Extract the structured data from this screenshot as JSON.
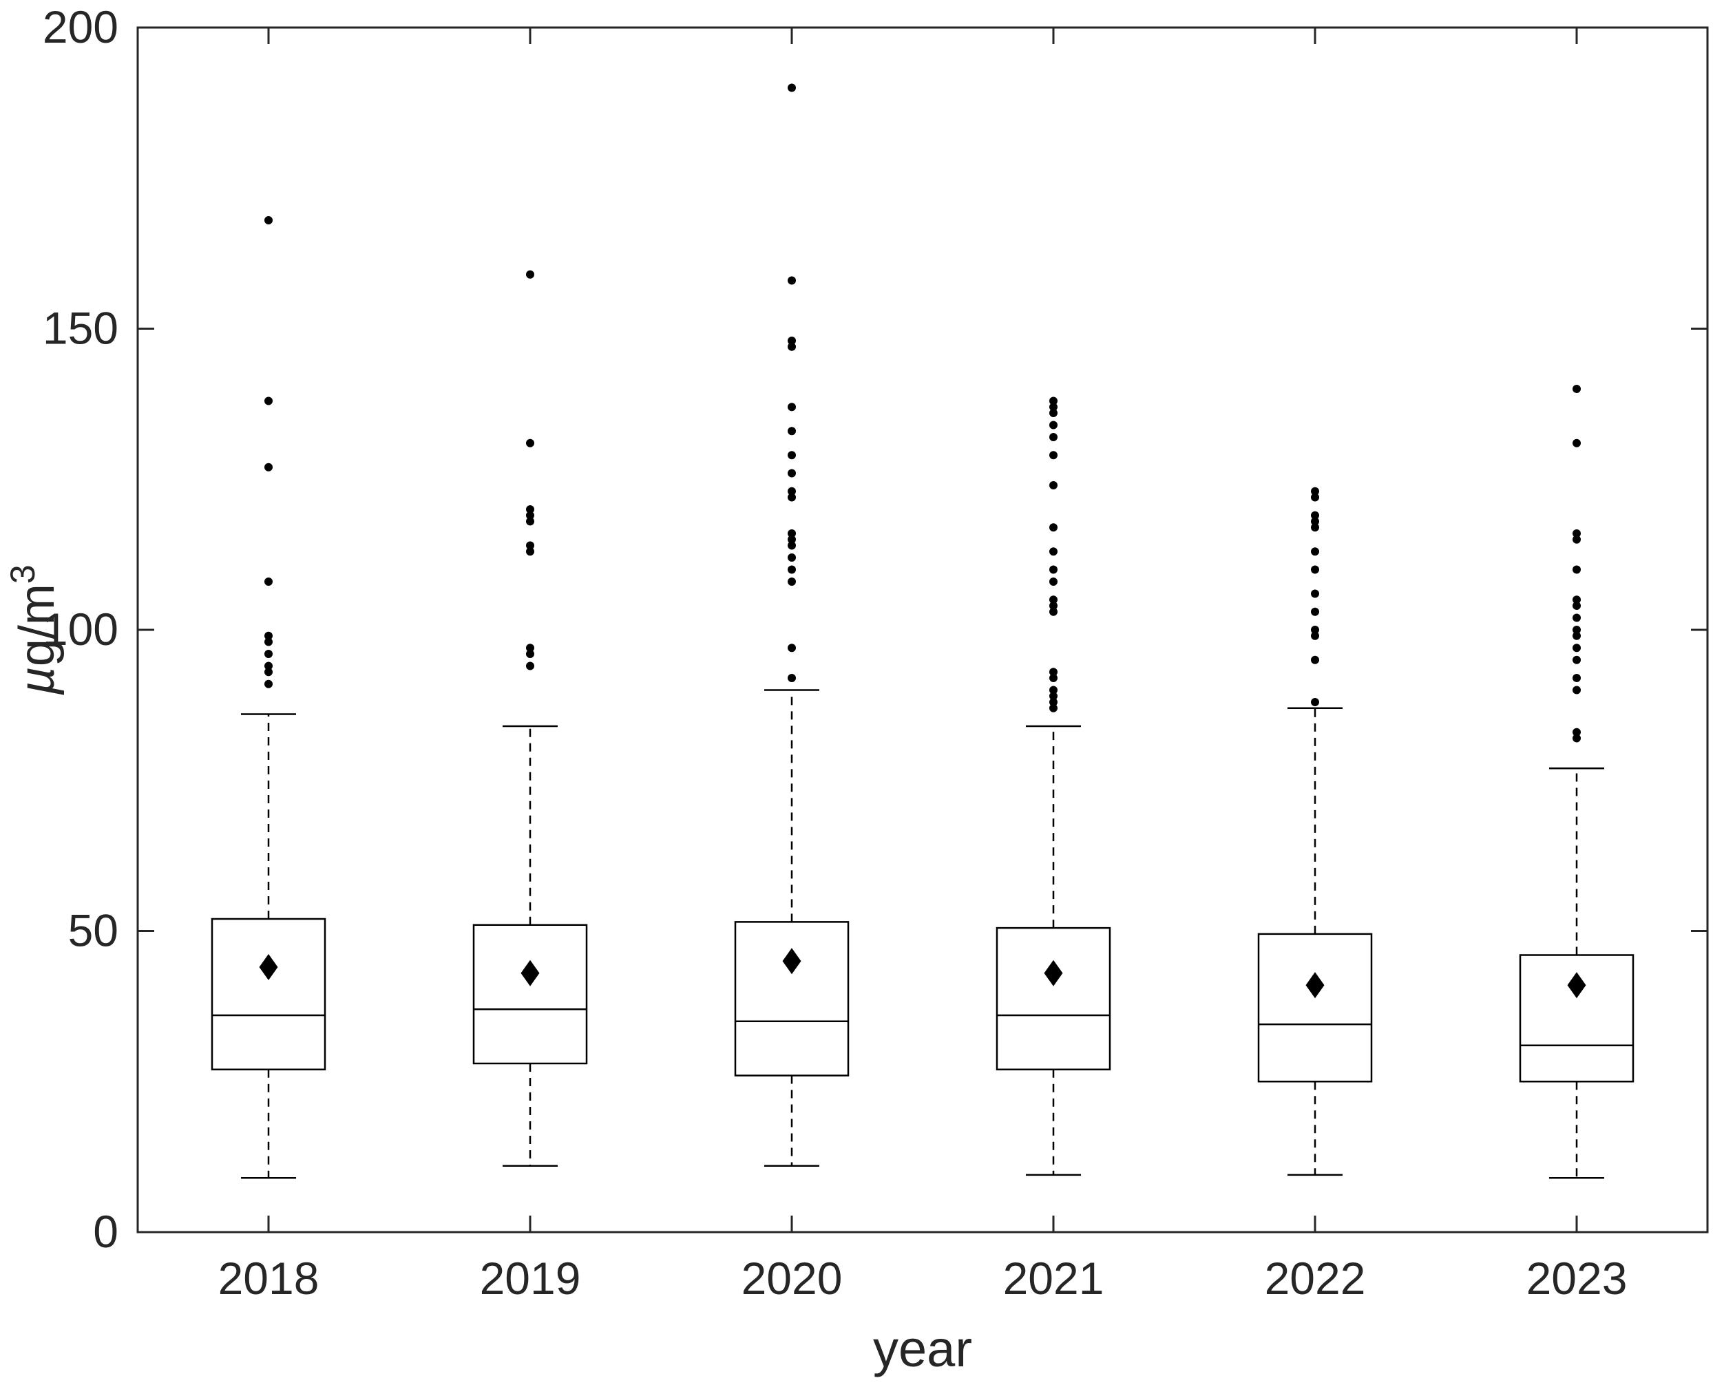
{
  "chart_data": {
    "type": "boxplot",
    "title": "",
    "xlabel": "year",
    "ylabel": "µg/m³",
    "ylabel_parts": {
      "mu": "µ",
      "base": "g/m",
      "sup": "3"
    },
    "ylim": [
      0,
      200
    ],
    "yticks": [
      0,
      50,
      100,
      150,
      200
    ],
    "grid": false,
    "legend": "none",
    "categories": [
      "2018",
      "2019",
      "2020",
      "2021",
      "2022",
      "2023"
    ],
    "series": [
      {
        "category": "2018",
        "q1": 27,
        "median": 36,
        "q3": 52,
        "whisker_low": 9,
        "whisker_high": 86,
        "mean": 44,
        "outliers": [
          91,
          93,
          94,
          96,
          98,
          99,
          108,
          127,
          138,
          168
        ]
      },
      {
        "category": "2019",
        "q1": 28,
        "median": 37,
        "q3": 51,
        "whisker_low": 11,
        "whisker_high": 84,
        "mean": 43,
        "outliers": [
          94,
          96,
          97,
          113,
          114,
          118,
          119,
          120,
          131,
          159
        ]
      },
      {
        "category": "2020",
        "q1": 26,
        "median": 35,
        "q3": 51.5,
        "whisker_low": 11,
        "whisker_high": 90,
        "mean": 45,
        "outliers": [
          92,
          97,
          108,
          110,
          112,
          114,
          115,
          116,
          122,
          123,
          126,
          129,
          133,
          137,
          147,
          148,
          158,
          190
        ]
      },
      {
        "category": "2021",
        "q1": 27,
        "median": 36,
        "q3": 50.5,
        "whisker_low": 9.5,
        "whisker_high": 84,
        "mean": 43,
        "outliers": [
          87,
          88,
          89,
          90,
          92,
          93,
          103,
          104,
          105,
          108,
          110,
          113,
          117,
          124,
          129,
          132,
          134,
          136,
          137,
          138
        ]
      },
      {
        "category": "2022",
        "q1": 25,
        "median": 34.5,
        "q3": 49.5,
        "whisker_low": 9.5,
        "whisker_high": 87,
        "mean": 41,
        "outliers": [
          88,
          95,
          99,
          100,
          103,
          106,
          110,
          113,
          117,
          118,
          119,
          122,
          123
        ]
      },
      {
        "category": "2023",
        "q1": 25,
        "median": 31,
        "q3": 46,
        "whisker_low": 9,
        "whisker_high": 77,
        "mean": 41,
        "outliers": [
          82,
          83,
          90,
          92,
          95,
          97,
          99,
          100,
          102,
          104,
          105,
          110,
          115,
          116,
          131,
          140
        ]
      }
    ],
    "colors": {
      "axis": "#262626",
      "box_stroke": "#000000",
      "box_fill": "#ffffff",
      "marker": "#000000",
      "background": "#ffffff"
    }
  }
}
